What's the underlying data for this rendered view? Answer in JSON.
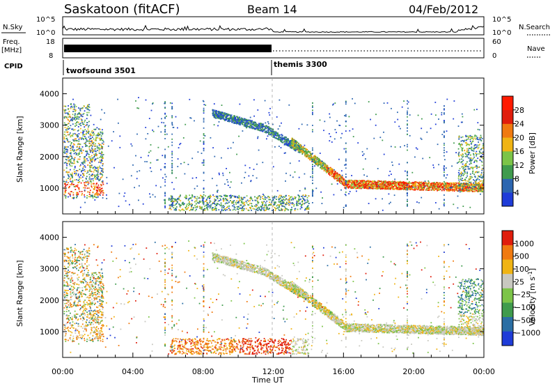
{
  "header": {
    "station": "Saskatoon (fitACF)",
    "beam": "Beam 14",
    "date": "04/Feb/2012"
  },
  "chart_data": [
    {
      "type": "line",
      "panel": "noise",
      "ylabel": "N.Sky",
      "right_label": "N.Search",
      "left_ticks": [
        "10^5",
        "10^0"
      ],
      "right_ticks": [
        "10^5",
        "10^0"
      ]
    },
    {
      "type": "line",
      "panel": "frequency",
      "ylabel": "Freq.",
      "yunit": "[MHz]",
      "left_ticks": [
        "18",
        "8"
      ],
      "right_label": "Nave",
      "right_ticks": [
        "60",
        "0"
      ]
    },
    {
      "type": "table",
      "panel": "cpid",
      "label": "CPID",
      "segments": [
        {
          "name": "twofsound 3501",
          "start_hour": 0,
          "end_hour": 12
        },
        {
          "name": "themis 3300",
          "start_hour": 12,
          "end_hour": 24
        }
      ]
    },
    {
      "type": "heatmap",
      "panel": "power",
      "ylabel": "Slant Range [km]",
      "ylim": [
        180,
        4500
      ],
      "yticks": [
        1000,
        2000,
        3000,
        4000
      ],
      "xlim": [
        0,
        24
      ],
      "colorbar_label": "Power [dB]",
      "colorbar_ticks": [
        4,
        8,
        12,
        16,
        20,
        24,
        28
      ],
      "colors": [
        "#1f3cd8",
        "#2c66b0",
        "#3f9b4d",
        "#7cc448",
        "#f0b414",
        "#f07a10",
        "#e01d0c",
        "#ff1a00"
      ]
    },
    {
      "type": "heatmap",
      "panel": "velocity",
      "ylabel": "Slant Range [km]",
      "ylim": [
        180,
        4500
      ],
      "yticks": [
        1000,
        2000,
        3000,
        4000
      ],
      "xlim": [
        0,
        24
      ],
      "xticks": [
        "00:00",
        "04:00",
        "08:00",
        "12:00",
        "16:00",
        "20:00",
        "00:00"
      ],
      "xlabel": "Time UT",
      "colorbar_label": "Velocity [m s^-1]",
      "colorbar_ticks": [
        "1000",
        "500",
        "100",
        "25",
        "−25",
        "−100",
        "−500",
        "−1000"
      ],
      "colors": [
        "#1f3cd8",
        "#2a6ea4",
        "#3f9b4d",
        "#7cc448",
        "#c8c8c0",
        "#f0b414",
        "#f07a10",
        "#e01d0c"
      ]
    }
  ]
}
